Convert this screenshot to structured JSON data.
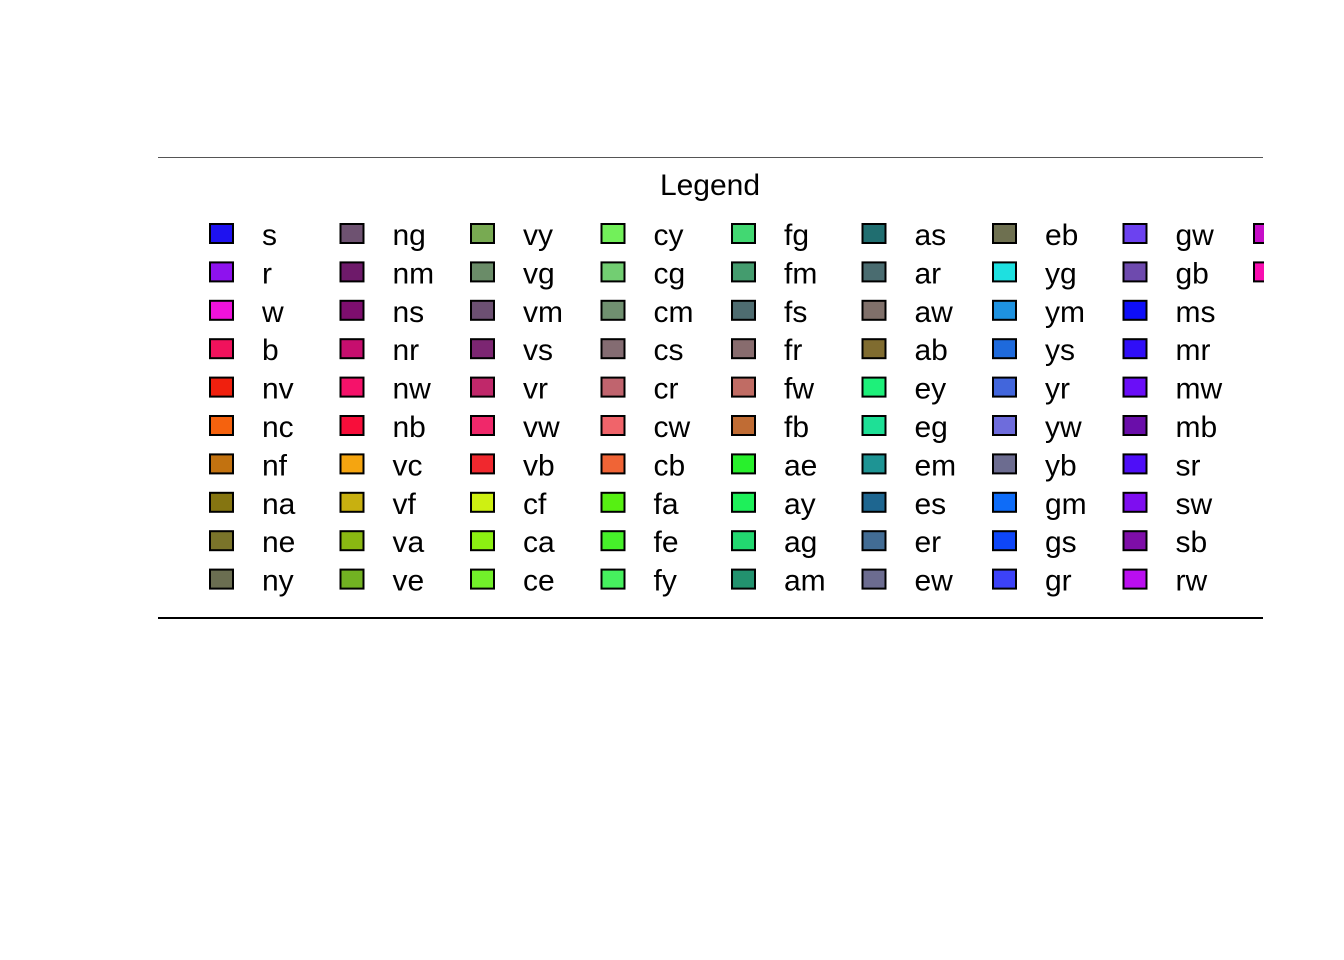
{
  "chart_data": {
    "type": "legend",
    "title": "Legend",
    "layout": "column-major",
    "rows_per_column": 10,
    "columns_visible": 8,
    "clipped_right_edge": true,
    "entries": [
      {
        "label": "s",
        "color": "#1E12F0"
      },
      {
        "label": "r",
        "color": "#8E12EE"
      },
      {
        "label": "w",
        "color": "#F012DC"
      },
      {
        "label": "b",
        "color": "#F0125C"
      },
      {
        "label": "nv",
        "color": "#F0200E"
      },
      {
        "label": "nc",
        "color": "#F5620E"
      },
      {
        "label": "nf",
        "color": "#C27210"
      },
      {
        "label": "na",
        "color": "#857511"
      },
      {
        "label": "ne",
        "color": "#7A742A"
      },
      {
        "label": "ny",
        "color": "#6B6E51"
      },
      {
        "label": "ng",
        "color": "#6E5271"
      },
      {
        "label": "nm",
        "color": "#6E1A6A"
      },
      {
        "label": "ns",
        "color": "#7E0E6E"
      },
      {
        "label": "nr",
        "color": "#C60E6E"
      },
      {
        "label": "nw",
        "color": "#F5126A"
      },
      {
        "label": "nb",
        "color": "#F80E3A"
      },
      {
        "label": "vc",
        "color": "#F5A510"
      },
      {
        "label": "vf",
        "color": "#C8B010"
      },
      {
        "label": "va",
        "color": "#8AB812"
      },
      {
        "label": "ve",
        "color": "#72B222"
      },
      {
        "label": "vy",
        "color": "#78AA52"
      },
      {
        "label": "vg",
        "color": "#6A8C68"
      },
      {
        "label": "vm",
        "color": "#6C5072"
      },
      {
        "label": "vs",
        "color": "#7C2672"
      },
      {
        "label": "vr",
        "color": "#C0286A"
      },
      {
        "label": "vw",
        "color": "#F0286A"
      },
      {
        "label": "vb",
        "color": "#F0282E"
      },
      {
        "label": "cf",
        "color": "#CEF012"
      },
      {
        "label": "ca",
        "color": "#8CF012"
      },
      {
        "label": "ce",
        "color": "#72F02A"
      },
      {
        "label": "cy",
        "color": "#72F05A"
      },
      {
        "label": "cg",
        "color": "#72CE72"
      },
      {
        "label": "cm",
        "color": "#709070"
      },
      {
        "label": "cs",
        "color": "#846C72"
      },
      {
        "label": "cr",
        "color": "#C0646E"
      },
      {
        "label": "cw",
        "color": "#F0646A"
      },
      {
        "label": "cb",
        "color": "#F06436"
      },
      {
        "label": "fa",
        "color": "#56F012"
      },
      {
        "label": "fe",
        "color": "#46F02A"
      },
      {
        "label": "fy",
        "color": "#46F05E"
      },
      {
        "label": "fg",
        "color": "#42D872"
      },
      {
        "label": "fm",
        "color": "#449C6E"
      },
      {
        "label": "fs",
        "color": "#4E6C70"
      },
      {
        "label": "fr",
        "color": "#886C6E"
      },
      {
        "label": "fw",
        "color": "#C06C64"
      },
      {
        "label": "fb",
        "color": "#C06C34"
      },
      {
        "label": "ae",
        "color": "#28F02C"
      },
      {
        "label": "ay",
        "color": "#1EF05A"
      },
      {
        "label": "ag",
        "color": "#22D870"
      },
      {
        "label": "am",
        "color": "#22926E"
      },
      {
        "label": "as",
        "color": "#206E70"
      },
      {
        "label": "ar",
        "color": "#4A6C70"
      },
      {
        "label": "aw",
        "color": "#80706A"
      },
      {
        "label": "ab",
        "color": "#806C30"
      },
      {
        "label": "ey",
        "color": "#1EF07A"
      },
      {
        "label": "eg",
        "color": "#1EE096"
      },
      {
        "label": "em",
        "color": "#1E9494"
      },
      {
        "label": "es",
        "color": "#1E6690"
      },
      {
        "label": "er",
        "color": "#426C94"
      },
      {
        "label": "ew",
        "color": "#6C6C90"
      },
      {
        "label": "eb",
        "color": "#6E7050"
      },
      {
        "label": "yg",
        "color": "#1EE0E0"
      },
      {
        "label": "ym",
        "color": "#1E92E0"
      },
      {
        "label": "ys",
        "color": "#1E6ADC"
      },
      {
        "label": "yr",
        "color": "#4266DC"
      },
      {
        "label": "yw",
        "color": "#6E6CDC"
      },
      {
        "label": "yb",
        "color": "#6C6C90"
      },
      {
        "label": "gm",
        "color": "#0E6CF8"
      },
      {
        "label": "gs",
        "color": "#0E46F8"
      },
      {
        "label": "gr",
        "color": "#3C42F8"
      },
      {
        "label": "gw",
        "color": "#6C42F0"
      },
      {
        "label": "gb",
        "color": "#6E4AAE"
      },
      {
        "label": "ms",
        "color": "#0E0EF8"
      },
      {
        "label": "mr",
        "color": "#300EF8"
      },
      {
        "label": "mw",
        "color": "#6A0EF8"
      },
      {
        "label": "mb",
        "color": "#6A0EAA"
      },
      {
        "label": "sr",
        "color": "#4E0EF8"
      },
      {
        "label": "sw",
        "color": "#7E0EF0"
      },
      {
        "label": "sb",
        "color": "#7E0EA8"
      },
      {
        "label": "rw",
        "color": "#BA0EF0"
      },
      {
        "label": "",
        "color": "#C60EC8"
      },
      {
        "label": "",
        "color": "#F80EB0"
      }
    ]
  }
}
